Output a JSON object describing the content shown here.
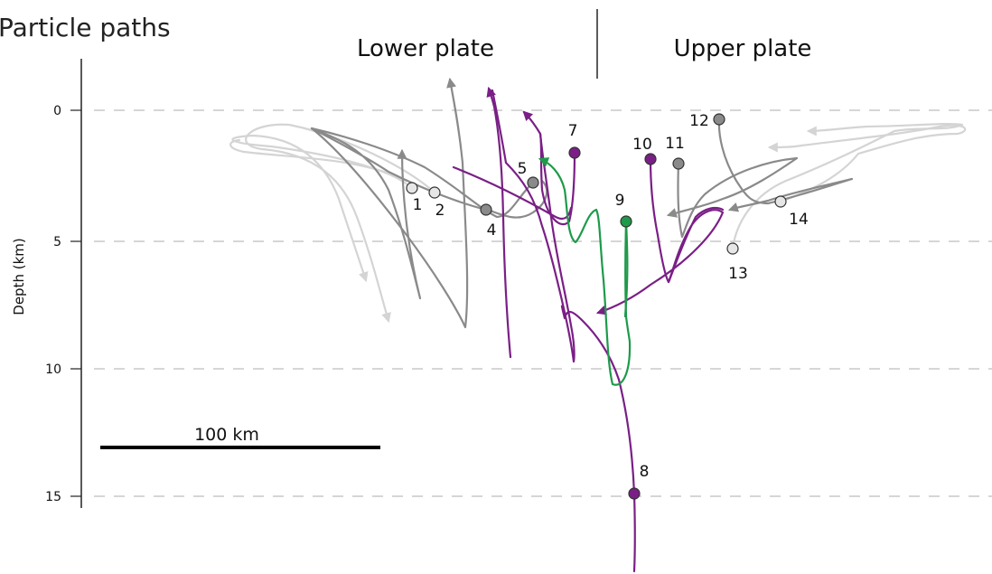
{
  "title": "Particle paths",
  "plates": {
    "lower": "Lower plate",
    "upper": "Upper plate"
  },
  "axis": {
    "ylabel": "Depth (km)",
    "ticks": [
      "0",
      "5",
      "10",
      "15"
    ]
  },
  "scale_bar": {
    "label": "100 km"
  },
  "colors": {
    "light_gray": "#d4d4d4",
    "gray": "#8a8a8a",
    "purple": "#7a1f86",
    "green": "#1e9a4a",
    "gridline": "#bdbdbd"
  },
  "particles": [
    {
      "id": "1",
      "label": "1",
      "color": "light_gray"
    },
    {
      "id": "2",
      "label": "2",
      "color": "light_gray"
    },
    {
      "id": "4",
      "label": "4",
      "color": "gray"
    },
    {
      "id": "5",
      "label": "5",
      "color": "gray"
    },
    {
      "id": "7",
      "label": "7",
      "color": "purple"
    },
    {
      "id": "8",
      "label": "8",
      "color": "purple"
    },
    {
      "id": "9",
      "label": "9",
      "color": "green"
    },
    {
      "id": "10",
      "label": "10",
      "color": "purple"
    },
    {
      "id": "11",
      "label": "11",
      "color": "gray"
    },
    {
      "id": "12",
      "label": "12",
      "color": "gray"
    },
    {
      "id": "13",
      "label": "13",
      "color": "light_gray"
    },
    {
      "id": "14",
      "label": "14",
      "color": "light_gray"
    }
  ]
}
